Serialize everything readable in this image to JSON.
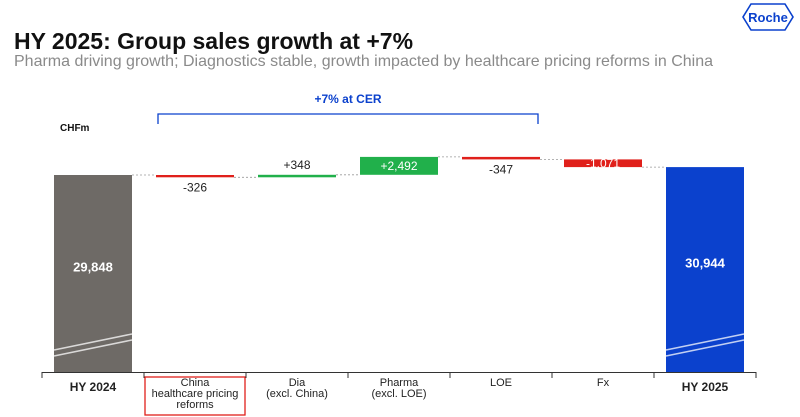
{
  "header": {
    "title": "HY 2025: Group sales growth at +7%",
    "subtitle": "Pharma driving growth; Diagnostics stable, growth impacted by healthcare pricing reforms in China",
    "logo_text": "Roche",
    "logo_color": "#0b41cd"
  },
  "chart_data": {
    "type": "waterfall",
    "unit": "CHFm",
    "bracket_label": "+7% at CER",
    "highlighted_category": "China healthcare pricing reforms",
    "bars": [
      {
        "name": "bar-hy2024",
        "label": "HY 2024",
        "category_lines": [
          "HY 2024"
        ],
        "kind": "total",
        "value": 29848,
        "display": "29,848",
        "color": "#6e6a66",
        "bold": true
      },
      {
        "name": "bar-china",
        "label": "China healthcare pricing reforms",
        "category_lines": [
          "China",
          "healthcare pricing",
          "reforms"
        ],
        "kind": "delta",
        "value": -326,
        "display": "-326",
        "color": "#e0201b",
        "bold": false
      },
      {
        "name": "bar-dia",
        "label": "Dia (excl. China)",
        "category_lines": [
          "Dia",
          "(excl. China)"
        ],
        "kind": "delta",
        "value": 348,
        "display": "+348",
        "color": "#21b04b",
        "bold": false
      },
      {
        "name": "bar-pharma",
        "label": "Pharma (excl. LOE)",
        "category_lines": [
          "Pharma",
          "(excl. LOE)"
        ],
        "kind": "delta",
        "value": 2492,
        "display": "+2,492",
        "color": "#21b04b",
        "bold": false
      },
      {
        "name": "bar-loe",
        "label": "LOE",
        "category_lines": [
          "LOE"
        ],
        "kind": "delta",
        "value": -347,
        "display": "-347",
        "color": "#e0201b",
        "bold": false
      },
      {
        "name": "bar-fx",
        "label": "Fx",
        "category_lines": [
          "Fx"
        ],
        "kind": "delta",
        "value": -1071,
        "display": "-1,071",
        "color": "#e0201b",
        "bold": false
      },
      {
        "name": "bar-hy2025",
        "label": "HY 2025",
        "category_lines": [
          "HY 2025"
        ],
        "kind": "total",
        "value": 30944,
        "display": "30,944",
        "color": "#0b41cd",
        "bold": true
      }
    ],
    "axis_break": true
  }
}
